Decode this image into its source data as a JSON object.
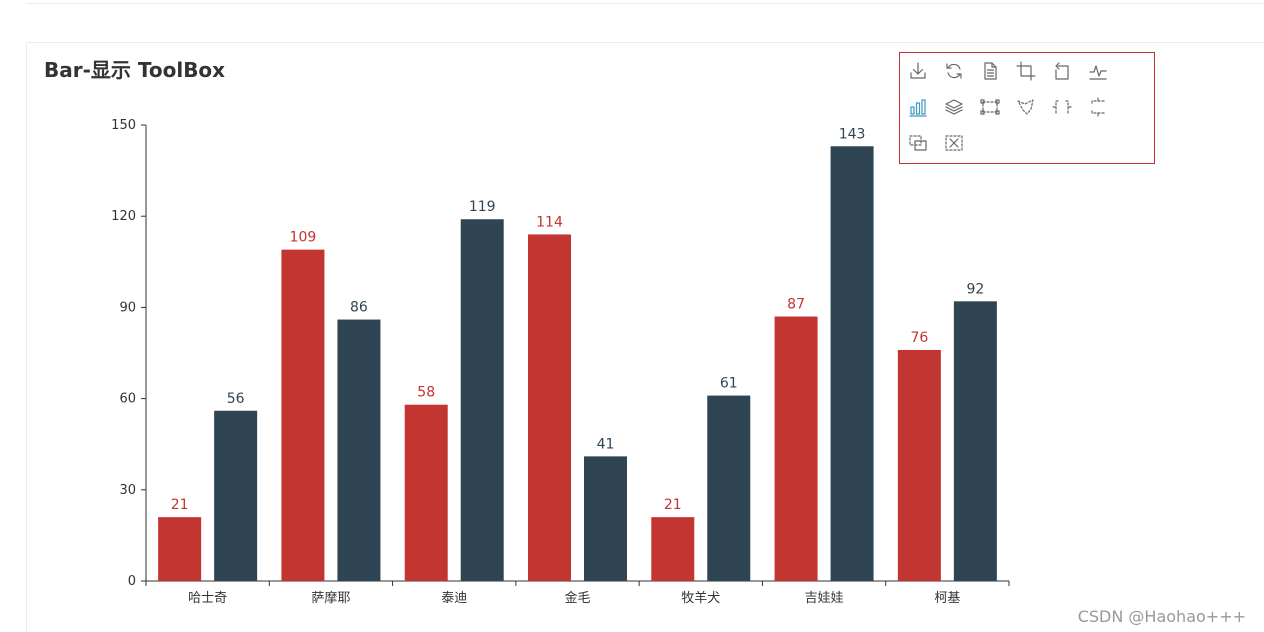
{
  "title": "Bar-显示 ToolBox",
  "watermark": "CSDN @Haohao+++",
  "toolbox": {
    "border_color": "#c23531",
    "icon_color": "#666666",
    "active_color": "#3e98c5",
    "tools": [
      {
        "icon": "download-icon",
        "active": false
      },
      {
        "icon": "restore-icon",
        "active": false
      },
      {
        "icon": "data-view-icon",
        "active": false
      },
      {
        "icon": "data-zoom-icon",
        "active": false
      },
      {
        "icon": "zoom-back-icon",
        "active": false
      },
      {
        "icon": "line-chart-icon",
        "active": false
      },
      {
        "icon": "bar-chart-icon",
        "active": true
      },
      {
        "icon": "stack-icon",
        "active": false
      },
      {
        "icon": "rect-brush-icon",
        "active": false
      },
      {
        "icon": "polygon-brush-icon",
        "active": false
      },
      {
        "icon": "linex-brush-icon",
        "active": false
      },
      {
        "icon": "liney-brush-icon",
        "active": false
      },
      {
        "icon": "keep-brush-icon",
        "active": false
      },
      {
        "icon": "clear-brush-icon",
        "active": false
      }
    ]
  },
  "chart_data": {
    "type": "bar",
    "categories": [
      "哈士奇",
      "萨摩耶",
      "泰迪",
      "金毛",
      "牧羊犬",
      "吉娃娃",
      "柯基"
    ],
    "series": [
      {
        "color": "#c23531",
        "values": [
          21,
          109,
          58,
          114,
          21,
          87,
          76
        ]
      },
      {
        "color": "#2f4554",
        "values": [
          56,
          86,
          119,
          41,
          61,
          143,
          92
        ]
      }
    ],
    "ylim": [
      0,
      150
    ],
    "yticks": [
      0,
      30,
      60,
      90,
      120,
      150
    ],
    "show_labels": true,
    "grid": false,
    "legend": "none"
  }
}
